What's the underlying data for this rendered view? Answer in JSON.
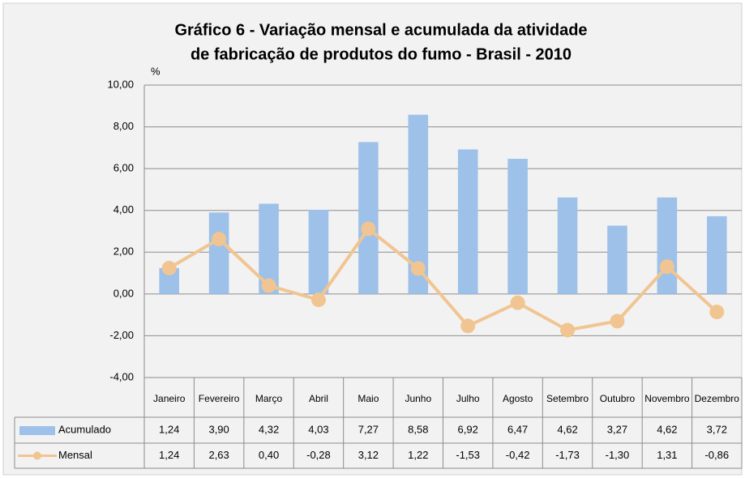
{
  "chart_data": {
    "type": "bar_line_table",
    "title": "Gráfico 6 - Variação mensal e acumulada da atividade",
    "subtitle": "de fabricação de produtos do fumo - Brasil - 2010",
    "y_label": "%",
    "categories": [
      "Janeiro",
      "Fevereiro",
      "Março",
      "Abril",
      "Maio",
      "Junho",
      "Julho",
      "Agosto",
      "Setembro",
      "Outubro",
      "Novembro",
      "Dezembro"
    ],
    "series": [
      {
        "name": "Acumulado",
        "type": "bar",
        "color": "#9dc1e8",
        "values": [
          1.24,
          3.9,
          4.32,
          4.03,
          7.27,
          8.58,
          6.92,
          6.47,
          4.62,
          3.27,
          4.62,
          3.72
        ],
        "value_labels": [
          "1,24",
          "3,90",
          "4,32",
          "4,03",
          "7,27",
          "8,58",
          "6,92",
          "6,47",
          "4,62",
          "3,27",
          "4,62",
          "3,72"
        ]
      },
      {
        "name": "Mensal",
        "type": "line",
        "color": "#f1c591",
        "values": [
          1.24,
          2.63,
          0.4,
          -0.28,
          3.12,
          1.22,
          -1.53,
          -0.42,
          -1.73,
          -1.3,
          1.31,
          -0.86
        ],
        "value_labels": [
          "1,24",
          "2,63",
          "0,40",
          "-0,28",
          "3,12",
          "1,22",
          "-1,53",
          "-0,42",
          "-1,73",
          "-1,30",
          "1,31",
          "-0,86"
        ]
      }
    ],
    "ylim": [
      -4,
      10
    ],
    "yticks": [
      {
        "value": -4,
        "label": "-4,00"
      },
      {
        "value": -2,
        "label": "-2,00"
      },
      {
        "value": 0,
        "label": "0,00"
      },
      {
        "value": 2,
        "label": "2,00"
      },
      {
        "value": 4,
        "label": "4,00"
      },
      {
        "value": 6,
        "label": "6,00"
      },
      {
        "value": 8,
        "label": "8,00"
      },
      {
        "value": 10,
        "label": "10,00"
      }
    ],
    "grid": true
  }
}
